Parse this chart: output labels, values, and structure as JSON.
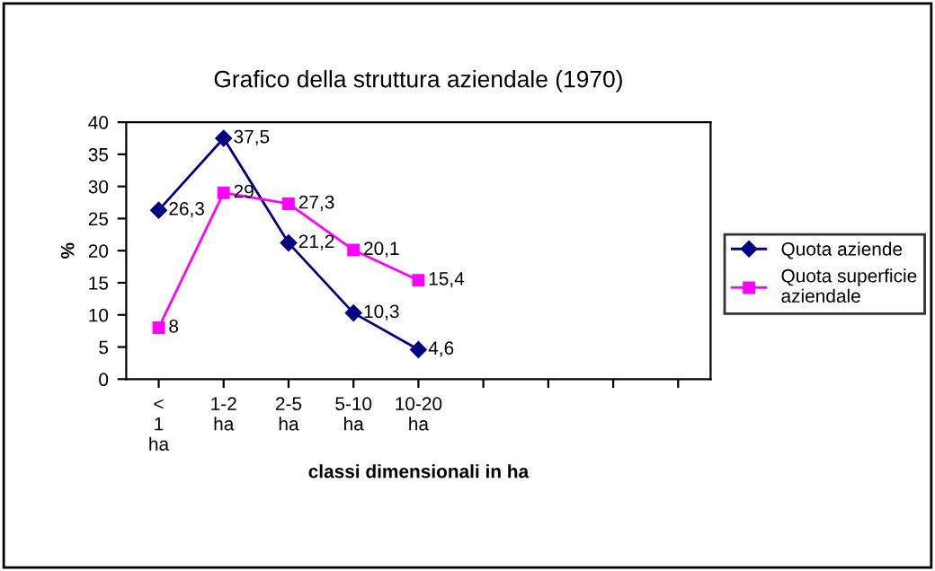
{
  "chart_data": {
    "type": "line",
    "title": "Grafico della struttura aziendale (1970)",
    "xlabel": "classi dimensionali in ha",
    "ylabel": "%",
    "categories": [
      "< 1 ha",
      "1-2 ha",
      "2-5 ha",
      "5-10 ha",
      "10-20 ha",
      null,
      null,
      null,
      null
    ],
    "series": [
      {
        "name": "Quota aziende",
        "color": "#000080",
        "marker": "diamond",
        "values": [
          26.3,
          37.5,
          21.2,
          10.3,
          4.6,
          null,
          null,
          null,
          null
        ],
        "value_labels": [
          "26,3",
          "37,5",
          "21,2",
          "10,3",
          "4,6",
          null,
          null,
          null,
          null
        ]
      },
      {
        "name": "Quota superficie aziendale",
        "color": "#ff00ff",
        "marker": "square",
        "values": [
          8,
          29,
          27.3,
          20.1,
          15.4,
          null,
          null,
          null,
          null
        ],
        "value_labels": [
          "8",
          "29",
          "27,3",
          "20,1",
          "15,4",
          null,
          null,
          null,
          null
        ]
      }
    ],
    "ylim": [
      0,
      40
    ],
    "yticks": [
      0,
      5,
      10,
      15,
      20,
      25,
      30,
      35,
      40
    ],
    "grid": false,
    "legend": "right",
    "line_style": "solid"
  }
}
